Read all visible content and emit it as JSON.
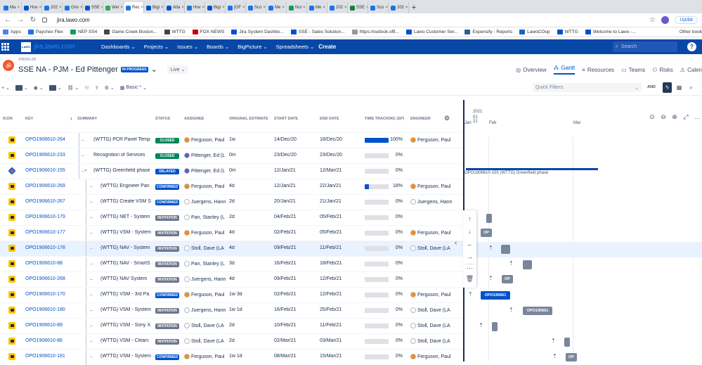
{
  "browser": {
    "tabs": [
      "Ma",
      "Hov",
      "202",
      "Onv",
      "SSE",
      "Wel",
      "Rec",
      "Bigi",
      "Atla",
      "Hov",
      "Bigi",
      "[OF",
      "Sco",
      "Me",
      "Nui",
      "Me",
      "202",
      "SSE",
      "Sco",
      "202"
    ],
    "active_tab_index": 6,
    "url": "jira.lawo.com",
    "update_label": "Updat",
    "bookmarks": [
      "Apps",
      "Paychex Flex",
      "NEP SS4",
      "Game Creek Boston...",
      "WTTG",
      "FOX NEWS",
      "Jira System Dashbo...",
      "SSE - Sales Solution...",
      "https://outlook.offi...",
      "Lawo Customer Ser...",
      "Expensify - Reports",
      "LawoCOop",
      "WTTG",
      "Welcome to Lawo -..."
    ],
    "other_bookmarks": "Other book"
  },
  "jira": {
    "logo": "LAWO",
    "site": "jira.lawo.com",
    "menu": [
      "Dashboards",
      "Projects",
      "Issues",
      "Boards",
      "BigPicture",
      "Spreadsheets"
    ],
    "create": "Create",
    "search_placeholder": "Search"
  },
  "project": {
    "key": "PROG-59",
    "title": "SSE NA - PJM - Ed Pittenger",
    "status_badge": "IN PROGRESS",
    "live": "Live",
    "views": [
      "Overview",
      "Gantt",
      "Resources",
      "Teams",
      "Risks",
      "Calen"
    ],
    "active_view": "Gantt",
    "basic_label": "Basic *",
    "quick_filters": "Quick Filters:",
    "and_label": "AND"
  },
  "columns": [
    "ICON",
    "KEY",
    "SUMMARY",
    "STATUS",
    "ASSIGNEE",
    "ORIGINAL ESTIMATE",
    "START DATE",
    "END DATE",
    "TIME TRACKING (SP)",
    "ENGINEER"
  ],
  "rows": [
    {
      "icon": "task",
      "key": "OPO1906610-264",
      "summary": "(WTTG) PCR Panel Temp",
      "status": "CLOSED",
      "assignee": "Ferguson, Paul",
      "estimate": "1w",
      "start": "14/Dec/20",
      "end": "18/Dec/20",
      "progress": 1.0,
      "pct": "100%",
      "engineer": "Ferguson, Paul",
      "level": 1
    },
    {
      "icon": "task",
      "key": "OPO1906610-233",
      "summary": "Recognition of Services",
      "status": "CLOSED",
      "assignee": "Pittenger, Ed (L",
      "estimate": "0m",
      "start": "23/Dec/20",
      "end": "23/Dec/20",
      "progress": 0,
      "pct": "0%",
      "engineer": "",
      "level": 1
    },
    {
      "icon": "epic",
      "key": "OPO1906610-155",
      "summary": "(WTTG) Greenfield phase",
      "status": "DELAYED",
      "assignee": "Pittenger, Ed (L",
      "estimate": "0m",
      "start": "12/Jan/21",
      "end": "12/Mar/21",
      "progress": 0,
      "pct": "0%",
      "engineer": "",
      "level": 1,
      "expanded": true
    },
    {
      "icon": "task",
      "key": "OPO1906610-269",
      "summary": "(WTTG) Engineer Pan",
      "status": "CONFIRMED",
      "assignee": "Ferguson, Paul",
      "estimate": "4d",
      "start": "12/Jan/21",
      "end": "22/Jan/21",
      "progress": 0.18,
      "pct": "18%",
      "engineer": "Ferguson, Paul",
      "level": 2
    },
    {
      "icon": "task",
      "key": "OPO1906610-267",
      "summary": "(WTTG) Create VSM S",
      "status": "CONFIRMED",
      "assignee": "Juergens, Hann",
      "estimate": "2d",
      "start": "20/Jan/21",
      "end": "21/Jan/21",
      "progress": 0,
      "pct": "0%",
      "engineer": "Juergens, Hann",
      "level": 2
    },
    {
      "icon": "task",
      "key": "OPO1906610-179",
      "summary": "(WTTG) NET - System",
      "status": "INVITATION",
      "assignee": "Pan, Stanley (L",
      "estimate": "2d",
      "start": "04/Feb/21",
      "end": "05/Feb/21",
      "progress": 0,
      "pct": "0%",
      "engineer": "",
      "level": 2
    },
    {
      "icon": "task",
      "key": "OPO1906610-177",
      "summary": "(WTTG) VSM - System",
      "status": "INVITATION",
      "assignee": "Ferguson, Paul",
      "estimate": "4d",
      "start": "02/Feb/21",
      "end": "05/Feb/21",
      "progress": 0,
      "pct": "0%",
      "engineer": "Ferguson, Paul",
      "level": 2
    },
    {
      "icon": "plane",
      "key": "OPO1906610-178",
      "summary": "(WTTG) NAV - System",
      "status": "INVITATION",
      "assignee": "Stoll, Dave (LA",
      "estimate": "4d",
      "start": "09/Feb/21",
      "end": "11/Feb/21",
      "progress": 0,
      "pct": "0%",
      "engineer": "Stoll, Dave (LA",
      "level": 2,
      "selected": true
    },
    {
      "icon": "task",
      "key": "OPO1906610-88",
      "summary": "(WTTG) NAV - SmartS",
      "status": "INVITATION",
      "assignee": "Pan, Stanley (L",
      "estimate": "3d",
      "start": "16/Feb/21",
      "end": "18/Feb/21",
      "progress": 0,
      "pct": "0%",
      "engineer": "",
      "level": 2
    },
    {
      "icon": "plane",
      "key": "OPO1906610-268",
      "summary": "(WTTG) NAV System",
      "status": "INVITATION",
      "assignee": "Juergens, Hann",
      "estimate": "4d",
      "start": "09/Feb/21",
      "end": "12/Feb/21",
      "progress": 0,
      "pct": "0%",
      "engineer": "",
      "level": 2
    },
    {
      "icon": "task",
      "key": "OPO1906610-170",
      "summary": "(WTTG) VSM - 3rd Pa",
      "status": "CONFIRMED",
      "assignee": "Ferguson, Paul",
      "estimate": "1w 3d",
      "start": "02/Feb/21",
      "end": "12/Feb/21",
      "progress": 0,
      "pct": "0%",
      "engineer": "Ferguson, Paul",
      "level": 2
    },
    {
      "icon": "task",
      "key": "OPO1906610-180",
      "summary": "(WTTG) VSM - System",
      "status": "INVITATION",
      "assignee": "Juergens, Hann",
      "estimate": "1w 1d",
      "start": "16/Feb/21",
      "end": "25/Feb/21",
      "progress": 0,
      "pct": "0%",
      "engineer": "Stoll, Dave (LA",
      "level": 2
    },
    {
      "icon": "plane",
      "key": "OPO1906610-89",
      "summary": "(WTTG) VSM - Sony X",
      "status": "INVITATION",
      "assignee": "Stoll, Dave (LA",
      "estimate": "2d",
      "start": "10/Feb/21",
      "end": "11/Feb/21",
      "progress": 0,
      "pct": "0%",
      "engineer": "Stoll, Dave (LA",
      "level": 2
    },
    {
      "icon": "plane",
      "key": "OPO1906610-86",
      "summary": "(WTTG) VSM - Clearc",
      "status": "INVITATION",
      "assignee": "Stoll, Dave (LA",
      "estimate": "2d",
      "start": "02/Mar/21",
      "end": "03/Mar/21",
      "progress": 0,
      "pct": "0%",
      "engineer": "Stoll, Dave (LA",
      "level": 2
    },
    {
      "icon": "task",
      "key": "OPO1906610-181",
      "summary": "(WTTG) VSM - System",
      "status": "CONFIRMED",
      "assignee": "Ferguson, Paul",
      "estimate": "1w 1d",
      "start": "08/Mar/21",
      "end": "15/Mar/21",
      "progress": 0,
      "pct": "0%",
      "engineer": "Ferguson, Paul",
      "level": 2
    }
  ],
  "status_colors": {
    "CLOSED": "#00875a",
    "DELAYED": "#0052cc",
    "CONFIRMED": "#0052cc",
    "INVITATION": "#6b778c"
  },
  "gantt": {
    "year": "2021",
    "week": "01 21",
    "months": [
      "Jan",
      "Feb",
      "Mar"
    ],
    "summary_label": "OPO1906610-155  (WTTG) Greenfield phase",
    "bar_labels": {
      "op": "OP",
      "op_long": "OPO190661"
    }
  }
}
